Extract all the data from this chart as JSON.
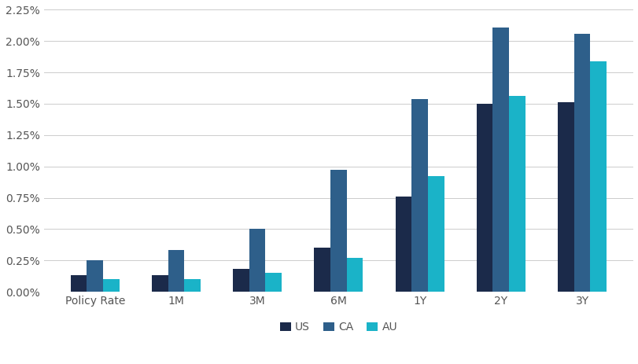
{
  "categories": [
    "Policy Rate",
    "1M",
    "3M",
    "6M",
    "1Y",
    "2Y",
    "3Y"
  ],
  "series": {
    "US": [
      0.0013,
      0.0013,
      0.0018,
      0.0035,
      0.0076,
      0.015,
      0.0151
    ],
    "CA": [
      0.0025,
      0.0033,
      0.005,
      0.0097,
      0.0154,
      0.0211,
      0.0206
    ],
    "AU": [
      0.001,
      0.001,
      0.0015,
      0.0027,
      0.0092,
      0.0156,
      0.0184
    ]
  },
  "colors": {
    "US": "#1b2a4a",
    "CA": "#2e5f8a",
    "AU": "#1ab3c8"
  },
  "ylim": [
    0,
    0.0225
  ],
  "yticks": [
    0.0,
    0.0025,
    0.005,
    0.0075,
    0.01,
    0.0125,
    0.015,
    0.0175,
    0.02,
    0.0225
  ],
  "legend_labels": [
    "US",
    "CA",
    "AU"
  ],
  "background_color": "#ffffff",
  "grid_color": "#cccccc",
  "bar_width": 0.2,
  "group_width": 1.0
}
